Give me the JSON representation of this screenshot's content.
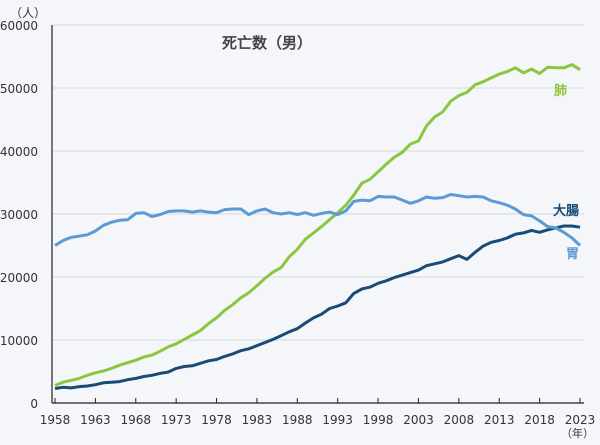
{
  "chart_data": {
    "type": "line",
    "title": "死亡数（男）",
    "ylabel": "（人）",
    "xlabel": "（年）",
    "ylim": [
      0,
      60000
    ],
    "yticks": [
      0,
      10000,
      20000,
      30000,
      40000,
      50000,
      60000
    ],
    "xlim": [
      1958,
      2023
    ],
    "xticks": [
      1958,
      1963,
      1968,
      1973,
      1978,
      1983,
      1988,
      1993,
      1998,
      2003,
      2008,
      2013,
      2018,
      2023
    ],
    "grid": true,
    "x_start": 1958,
    "series": [
      {
        "name": "肺",
        "color": "#8cc63f",
        "values": [
          2800,
          3300,
          3600,
          3900,
          4400,
          4800,
          5100,
          5500,
          6000,
          6400,
          6800,
          7300,
          7600,
          8200,
          8900,
          9400,
          10100,
          10800,
          11500,
          12600,
          13500,
          14700,
          15600,
          16700,
          17500,
          18600,
          19800,
          20800,
          21500,
          23200,
          24400,
          26000,
          27000,
          28000,
          29100,
          30200,
          31400,
          33000,
          34900,
          35500,
          36700,
          37900,
          39000,
          39800,
          41100,
          41600,
          44000,
          45400,
          46200,
          47900,
          48800,
          49300,
          50500,
          51000,
          51600,
          52200,
          52600,
          53200,
          52400,
          53000,
          52300,
          53300,
          53200,
          53200,
          53700,
          52900
        ]
      },
      {
        "name": "大腸",
        "color": "#1a4a78",
        "values": [
          2300,
          2500,
          2400,
          2600,
          2700,
          2900,
          3200,
          3300,
          3400,
          3700,
          3900,
          4200,
          4400,
          4700,
          4900,
          5500,
          5800,
          5900,
          6300,
          6700,
          6900,
          7400,
          7800,
          8300,
          8600,
          9100,
          9600,
          10100,
          10700,
          11300,
          11800,
          12700,
          13500,
          14100,
          15000,
          15400,
          15900,
          17400,
          18100,
          18400,
          19000,
          19400,
          19900,
          20300,
          20700,
          21100,
          21800,
          22100,
          22400,
          22900,
          23400,
          22800,
          23900,
          24900,
          25500,
          25800,
          26200,
          26800,
          27000,
          27400,
          27100,
          27500,
          27800,
          28100,
          28100,
          27900
        ]
      },
      {
        "name": "胃",
        "color": "#5b9bd5",
        "values": [
          25000,
          25800,
          26300,
          26500,
          26700,
          27300,
          28200,
          28700,
          29000,
          29100,
          30100,
          30200,
          29600,
          29900,
          30400,
          30500,
          30500,
          30300,
          30500,
          30300,
          30200,
          30700,
          30800,
          30800,
          29900,
          30500,
          30800,
          30200,
          30000,
          30200,
          29900,
          30200,
          29800,
          30100,
          30300,
          29900,
          30500,
          32000,
          32200,
          32100,
          32800,
          32700,
          32700,
          32200,
          31700,
          32100,
          32700,
          32500,
          32600,
          33100,
          32900,
          32700,
          32800,
          32700,
          32100,
          31800,
          31400,
          30800,
          29900,
          29700,
          28900,
          28000,
          27800,
          27100,
          26200,
          25000
        ]
      }
    ]
  }
}
